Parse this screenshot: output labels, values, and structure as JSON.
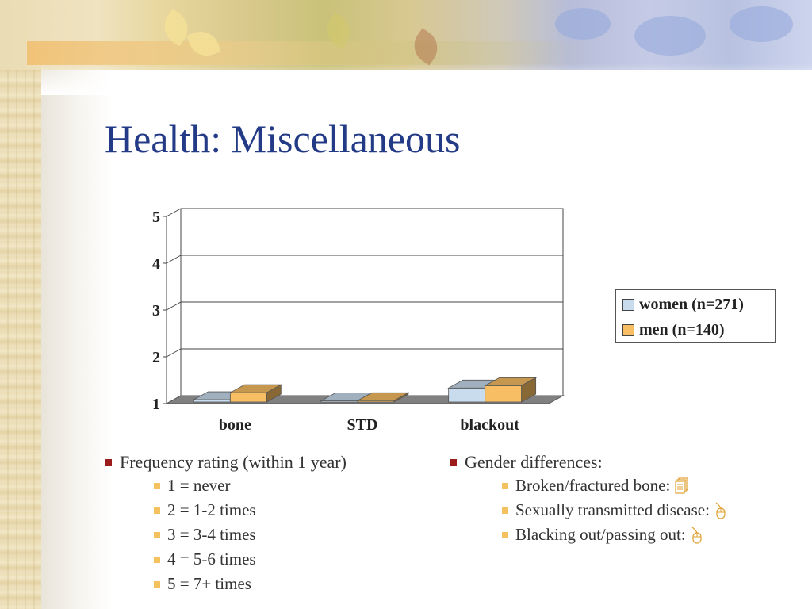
{
  "slide": {
    "title": "Health: Miscellaneous"
  },
  "chart_data": {
    "type": "bar",
    "categories": [
      "bone",
      "STD",
      "blackout"
    ],
    "series": [
      {
        "name": "women (n=271)",
        "values": [
          1.05,
          1.02,
          1.3
        ],
        "color": "#c8dcee"
      },
      {
        "name": "men (n=140)",
        "values": [
          1.2,
          1.03,
          1.35
        ],
        "color": "#f7be63"
      }
    ],
    "ylim": [
      1,
      5
    ],
    "yticks": [
      "1",
      "2",
      "3",
      "4",
      "5"
    ],
    "grid": true,
    "legend": "right",
    "three_d": true
  },
  "left_list": {
    "heading": "Frequency rating (within 1 year)",
    "items": [
      "1 = never",
      "2 = 1-2 times",
      "3 = 3-4 times",
      "4 = 5-6 times",
      "5 = 7+ times"
    ]
  },
  "right_list": {
    "heading": "Gender differences:",
    "items": [
      {
        "label": "Broken/fractured bone:",
        "icon": "document-stack-icon"
      },
      {
        "label": "Sexually transmitted disease:",
        "icon": "mouse-icon"
      },
      {
        "label": "Blacking out/passing out:",
        "icon": "mouse-icon"
      }
    ]
  },
  "colors": {
    "title": "#233a86",
    "bullet_primary": "#9c1b1b",
    "bullet_secondary": "#f3c25f"
  }
}
